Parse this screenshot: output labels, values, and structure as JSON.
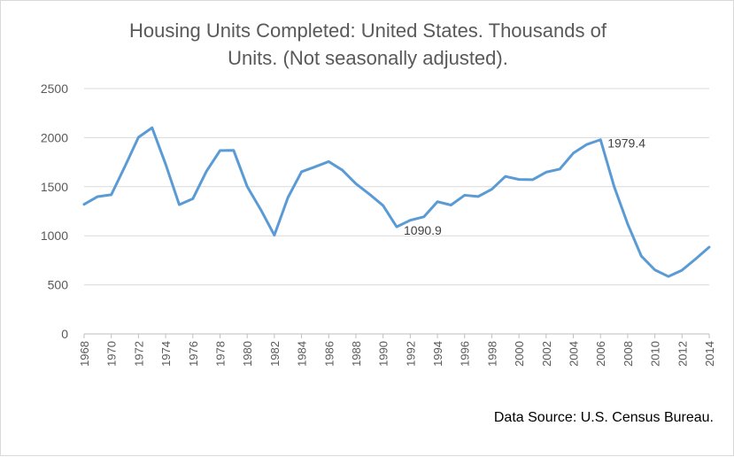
{
  "chart_data": {
    "type": "line",
    "title_line1": "Housing Units Completed: United States. Thousands of",
    "title_line2": "Units. (Not seasonally adjusted).",
    "xlabel": "",
    "ylabel": "",
    "ylim": [
      0,
      2500
    ],
    "yticks": [
      0,
      500,
      1000,
      1500,
      2000,
      2500
    ],
    "grid": true,
    "legend": "none",
    "x": [
      1968,
      1969,
      1970,
      1971,
      1972,
      1973,
      1974,
      1975,
      1976,
      1977,
      1978,
      1979,
      1980,
      1981,
      1982,
      1983,
      1984,
      1985,
      1986,
      1987,
      1988,
      1989,
      1990,
      1991,
      1992,
      1993,
      1994,
      1995,
      1996,
      1997,
      1998,
      1999,
      2000,
      2001,
      2002,
      2003,
      2004,
      2005,
      2006,
      2007,
      2008,
      2009,
      2010,
      2011,
      2012,
      2013,
      2014
    ],
    "xtick_labels": [
      "1968",
      "1970",
      "1972",
      "1974",
      "1976",
      "1978",
      "1980",
      "1982",
      "1984",
      "1986",
      "1988",
      "1990",
      "1992",
      "1994",
      "1996",
      "1998",
      "2000",
      "2002",
      "2004",
      "2006",
      "2008",
      "2010",
      "2012",
      "2014"
    ],
    "series": [
      {
        "color": "#5b9bd5",
        "values": [
          1320,
          1399,
          1418,
          1706,
          2004,
          2101,
          1729,
          1317,
          1377,
          1657,
          1868,
          1871,
          1502,
          1266,
          1006,
          1390,
          1652,
          1703,
          1756,
          1669,
          1530,
          1423,
          1308,
          1091,
          1158,
          1193,
          1347,
          1313,
          1413,
          1400,
          1474,
          1605,
          1574,
          1571,
          1648,
          1679,
          1842,
          1931,
          1979,
          1503,
          1120,
          794,
          652,
          585,
          649,
          764,
          884
        ]
      }
    ],
    "annotations": [
      {
        "x": 1991,
        "y": 1090.9,
        "text": "1090.9"
      },
      {
        "x": 2006,
        "y": 1979.4,
        "text": "1979.4"
      }
    ],
    "source": "Data Source: U.S. Census Bureau."
  }
}
